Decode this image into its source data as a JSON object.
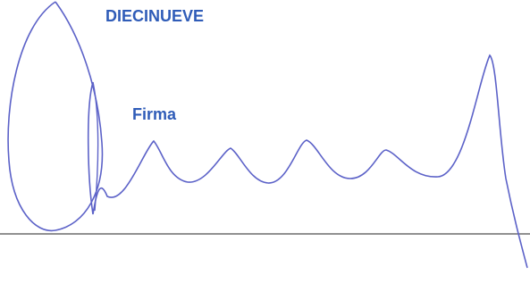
{
  "header": {
    "number_word": "DIECINUEVE"
  },
  "signature": {
    "label": "Firma"
  }
}
